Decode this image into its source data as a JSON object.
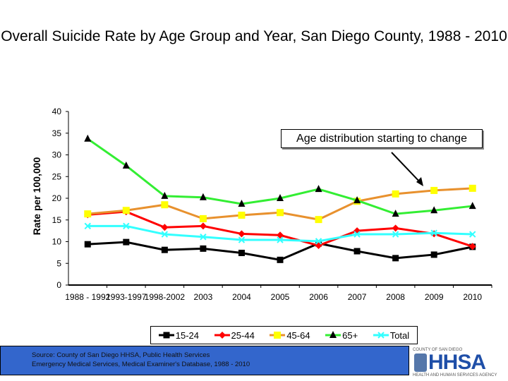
{
  "chart_data": {
    "type": "line",
    "title": "Overall Suicide Rate by Age Group and Year, San Diego County, 1988 - 2010",
    "ylabel": "Rate per 100,000",
    "xlabel": "",
    "ylim": [
      0,
      40
    ],
    "yticks": [
      0,
      5,
      10,
      15,
      20,
      25,
      30,
      35,
      40
    ],
    "categories": [
      "1988 - 1992",
      "1993-1997",
      "1998-2002",
      "2003",
      "2004",
      "2005",
      "2006",
      "2007",
      "2008",
      "2009",
      "2010"
    ],
    "series": [
      {
        "name": "15-24",
        "color": "#000000",
        "marker": "square",
        "values": [
          9.4,
          9.9,
          8.1,
          8.4,
          7.4,
          5.8,
          9.6,
          7.8,
          6.2,
          7.0,
          8.8
        ]
      },
      {
        "name": "25-44",
        "color": "#ff0000",
        "marker": "diamond",
        "values": [
          16.2,
          16.9,
          13.3,
          13.6,
          11.8,
          11.5,
          9.1,
          12.5,
          13.1,
          11.8,
          8.9
        ]
      },
      {
        "name": "45-64",
        "color": "#e8912e",
        "marker": "square-yellow",
        "values": [
          16.4,
          17.2,
          18.5,
          15.3,
          16.1,
          16.7,
          15.1,
          19.3,
          21.0,
          21.8,
          22.3
        ]
      },
      {
        "name": "65+",
        "color": "#33ee33",
        "marker": "triangle",
        "values": [
          33.7,
          27.5,
          20.5,
          20.2,
          18.7,
          20.0,
          22.1,
          19.5,
          16.4,
          17.2,
          18.2
        ]
      },
      {
        "name": "Total",
        "color": "#33ffff",
        "marker": "x",
        "values": [
          13.6,
          13.6,
          11.7,
          11.1,
          10.4,
          10.4,
          10.1,
          11.7,
          11.7,
          12.0,
          11.7
        ]
      }
    ],
    "annotation": "Age distribution starting to change",
    "legend": "bottom"
  },
  "source": {
    "line1": "Source: County of San Diego HHSA, Public Health Services",
    "line2": "Emergency Medical Services, Medical Examiner's Database, 1988 - 2010"
  },
  "logo": {
    "top": "COUNTY OF SAN DIEGO",
    "main": "HHSA",
    "bottom": "HEALTH AND HUMAN SERVICES AGENCY"
  }
}
